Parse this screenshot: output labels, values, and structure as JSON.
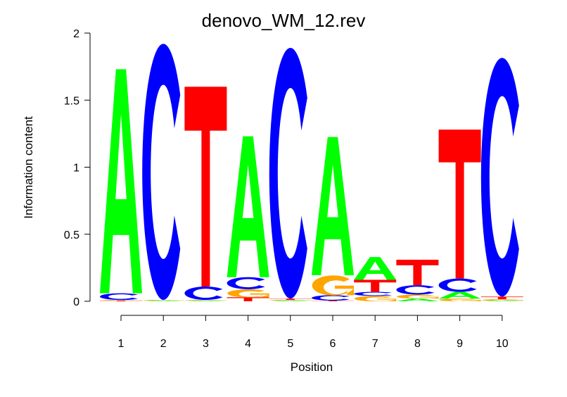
{
  "chart_data": {
    "type": "sequence-logo",
    "title": "denovo_WM_12.rev",
    "xlabel": "Position",
    "ylabel": "Information content",
    "ylim": [
      0,
      2
    ],
    "yticks": [
      "0",
      "0.5",
      "1",
      "1.5",
      "2"
    ],
    "xticks": [
      "1",
      "2",
      "3",
      "4",
      "5",
      "6",
      "7",
      "8",
      "9",
      "10"
    ],
    "colors": {
      "A": "#00ff00",
      "C": "#0000ff",
      "G": "#ffa500",
      "T": "#ff0000"
    },
    "positions": [
      [
        [
          "T",
          0.005
        ],
        [
          "G",
          0.005
        ],
        [
          "C",
          0.05
        ],
        [
          "A",
          1.67
        ]
      ],
      [
        [
          "A",
          0.005
        ],
        [
          "G",
          0.005
        ],
        [
          "C",
          1.91
        ]
      ],
      [
        [
          "A",
          0.005
        ],
        [
          "G",
          0.005
        ],
        [
          "C",
          0.1
        ],
        [
          "T",
          1.49
        ]
      ],
      [
        [
          "T",
          0.03
        ],
        [
          "G",
          0.06
        ],
        [
          "C",
          0.09
        ],
        [
          "A",
          1.05
        ]
      ],
      [
        [
          "A",
          0.005
        ],
        [
          "G",
          0.005
        ],
        [
          "T",
          0.01
        ],
        [
          "C",
          1.87
        ]
      ],
      [
        [
          "T",
          0.005
        ],
        [
          "C",
          0.04
        ],
        [
          "G",
          0.15
        ],
        [
          "A",
          1.03
        ]
      ],
      [
        [
          "G",
          0.04
        ],
        [
          "C",
          0.03
        ],
        [
          "T",
          0.09
        ],
        [
          "A",
          0.17
        ]
      ],
      [
        [
          "A",
          0.02
        ],
        [
          "G",
          0.03
        ],
        [
          "C",
          0.07
        ],
        [
          "T",
          0.19
        ]
      ],
      [
        [
          "G",
          0.02
        ],
        [
          "A",
          0.05
        ],
        [
          "C",
          0.1
        ],
        [
          "T",
          1.11
        ]
      ],
      [
        [
          "A",
          0.005
        ],
        [
          "G",
          0.01
        ],
        [
          "T",
          0.02
        ],
        [
          "C",
          1.78
        ]
      ]
    ]
  }
}
